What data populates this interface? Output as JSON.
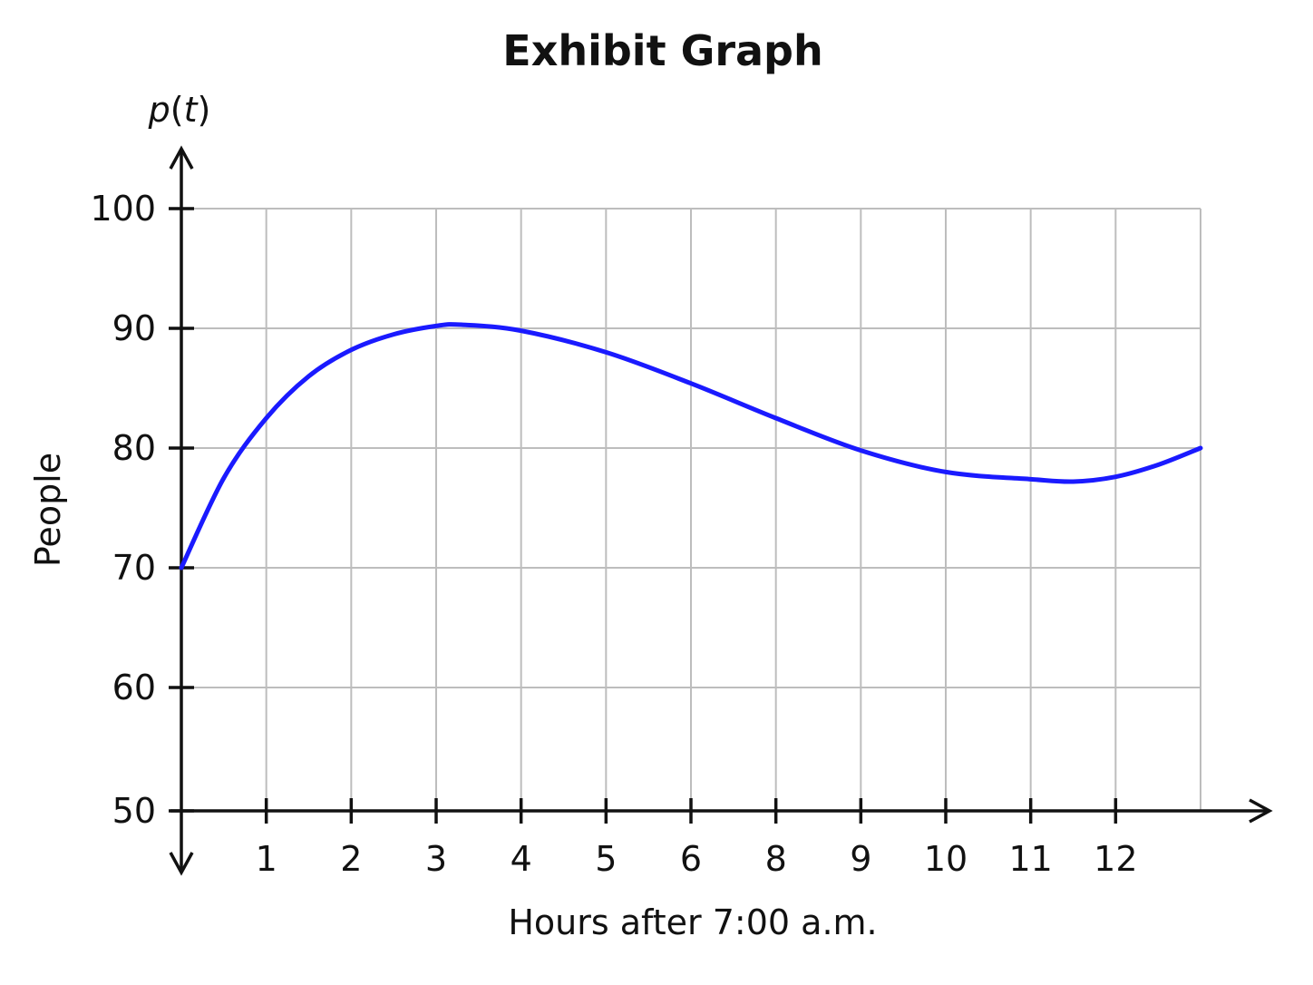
{
  "chart_data": {
    "type": "line",
    "title": "Exhibit Graph",
    "xlabel": "Hours after 7:00 a.m.",
    "ylabel": "People",
    "y_function_label": "p(t)",
    "x_tick_labels": [
      "1",
      "2",
      "3",
      "4",
      "5",
      "6",
      "8",
      "9",
      "10",
      "11",
      "12"
    ],
    "y_ticks": [
      50,
      60,
      70,
      80,
      90,
      100
    ],
    "xlim": [
      0,
      12
    ],
    "ylim": [
      50,
      100
    ],
    "grid": true,
    "series": [
      {
        "color": "#1a1aff",
        "x": [
          0,
          0.5,
          1,
          1.5,
          2,
          2.5,
          3,
          3.3,
          4,
          5,
          6,
          7,
          8,
          9,
          10,
          10.5,
          11,
          11.5,
          12
        ],
        "y": [
          70,
          77.5,
          82.5,
          86,
          88.2,
          89.5,
          90.2,
          90.3,
          89.8,
          88,
          85.4,
          82.5,
          79.8,
          78,
          77.4,
          77.2,
          77.6,
          78.6,
          80
        ]
      }
    ]
  }
}
